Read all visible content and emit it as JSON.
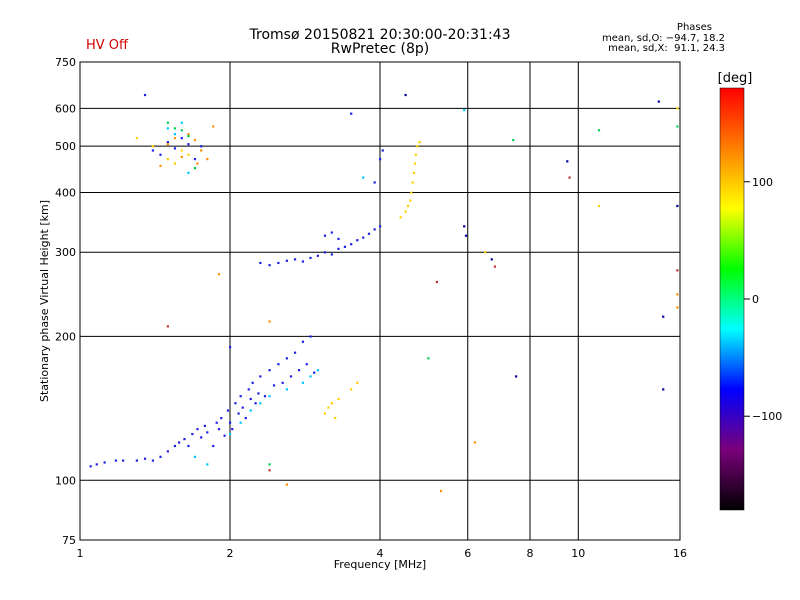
{
  "header": {
    "title": "Tromsø 20150821 20:30:00-20:31:43",
    "subtitle": "RwPretec (8p)",
    "status": "HV Off",
    "phases_title": "Phases",
    "phases_o": "mean, sd,O: −94.7, 18.2",
    "phases_x": "mean, sd,X:  91.1, 24.3"
  },
  "colorbar": {
    "unit": "[deg]",
    "ticks": [
      "100",
      "0",
      "−100"
    ],
    "tick_values": [
      100,
      0,
      -100
    ],
    "range": [
      -180,
      180
    ],
    "colors": [
      "#000000",
      "#7a007a",
      "#0000ff",
      "#00ffff",
      "#00ff00",
      "#ffff00",
      "#ff8000",
      "#ff0000"
    ]
  },
  "chart_data": {
    "type": "scatter",
    "title": "Tromsø 20150821 20:30:00-20:31:43",
    "subtitle": "RwPretec (8p)",
    "xlabel": "Frequency [MHz]",
    "ylabel": "Stationary phase Virtual Height [km]",
    "xscale": "log",
    "yscale": "log",
    "xlim": [
      1,
      16
    ],
    "ylim": [
      75,
      750
    ],
    "xticks": [
      1,
      2,
      4,
      6,
      8,
      10,
      16
    ],
    "xtick_labels": [
      "1",
      "2",
      "4",
      "6",
      "8",
      "10",
      "16"
    ],
    "yticks": [
      75,
      100,
      200,
      300,
      400,
      500,
      600,
      750
    ],
    "ytick_labels": [
      "75",
      "100",
      "200",
      "300",
      "400",
      "500",
      "600",
      "750"
    ],
    "grid": true,
    "series": [
      {
        "color": "#1f1fe6",
        "points": [
          [
            1.05,
            107
          ],
          [
            1.08,
            108
          ],
          [
            1.12,
            109
          ],
          [
            1.18,
            110
          ],
          [
            1.22,
            110
          ],
          [
            1.3,
            110
          ],
          [
            1.35,
            111
          ],
          [
            1.4,
            110
          ],
          [
            1.45,
            112
          ],
          [
            1.5,
            115
          ],
          [
            1.55,
            118
          ],
          [
            1.58,
            120
          ],
          [
            1.62,
            122
          ],
          [
            1.65,
            118
          ],
          [
            1.68,
            125
          ],
          [
            1.72,
            128
          ],
          [
            1.75,
            123
          ],
          [
            1.78,
            130
          ],
          [
            1.8,
            126
          ],
          [
            1.85,
            118
          ],
          [
            1.88,
            132
          ],
          [
            1.9,
            128
          ],
          [
            1.92,
            135
          ],
          [
            1.95,
            124
          ],
          [
            1.98,
            140
          ],
          [
            2.0,
            132
          ],
          [
            2.02,
            128
          ],
          [
            2.05,
            145
          ],
          [
            2.08,
            138
          ],
          [
            2.1,
            150
          ],
          [
            2.12,
            142
          ],
          [
            2.15,
            135
          ],
          [
            2.18,
            155
          ],
          [
            2.2,
            148
          ],
          [
            2.22,
            160
          ],
          [
            2.25,
            145
          ],
          [
            2.28,
            152
          ],
          [
            2.3,
            165
          ],
          [
            2.35,
            150
          ],
          [
            2.4,
            170
          ],
          [
            2.45,
            158
          ],
          [
            2.5,
            175
          ],
          [
            2.55,
            160
          ],
          [
            2.6,
            180
          ],
          [
            2.65,
            165
          ],
          [
            2.7,
            185
          ],
          [
            2.75,
            170
          ],
          [
            2.8,
            195
          ],
          [
            2.85,
            175
          ],
          [
            2.9,
            200
          ],
          [
            2.95,
            168
          ],
          [
            2.0,
            190
          ],
          [
            2.5,
            285
          ],
          [
            2.6,
            288
          ],
          [
            2.7,
            290
          ],
          [
            2.8,
            287
          ],
          [
            2.9,
            292
          ],
          [
            3.0,
            295
          ],
          [
            3.1,
            300
          ],
          [
            3.2,
            297
          ],
          [
            3.3,
            305
          ],
          [
            3.4,
            308
          ],
          [
            3.5,
            312
          ],
          [
            3.6,
            318
          ],
          [
            3.7,
            322
          ],
          [
            3.8,
            328
          ],
          [
            3.9,
            335
          ],
          [
            4.0,
            340
          ],
          [
            3.1,
            325
          ],
          [
            3.2,
            330
          ],
          [
            3.3,
            320
          ],
          [
            3.5,
            585
          ],
          [
            4.0,
            470
          ],
          [
            4.05,
            490
          ],
          [
            3.9,
            420
          ],
          [
            2.3,
            285
          ],
          [
            2.4,
            282
          ],
          [
            1.4,
            490
          ],
          [
            1.45,
            480
          ],
          [
            1.5,
            510
          ],
          [
            1.55,
            495
          ],
          [
            1.6,
            520
          ],
          [
            1.65,
            505
          ],
          [
            1.7,
            470
          ],
          [
            1.75,
            500
          ],
          [
            1.35,
            640
          ]
        ]
      },
      {
        "color": "#00c8ff",
        "points": [
          [
            1.7,
            112
          ],
          [
            1.8,
            108
          ],
          [
            2.0,
            125
          ],
          [
            2.1,
            132
          ],
          [
            2.2,
            140
          ],
          [
            2.3,
            145
          ],
          [
            2.4,
            150
          ],
          [
            2.6,
            155
          ],
          [
            2.8,
            160
          ],
          [
            2.9,
            165
          ],
          [
            3.0,
            170
          ],
          [
            1.5,
            545
          ],
          [
            1.55,
            530
          ],
          [
            1.6,
            560
          ],
          [
            1.65,
            440
          ],
          [
            5.9,
            595
          ],
          [
            3.7,
            430
          ]
        ]
      },
      {
        "color": "#ffd000",
        "points": [
          [
            3.1,
            138
          ],
          [
            3.15,
            142
          ],
          [
            3.2,
            145
          ],
          [
            3.25,
            135
          ],
          [
            3.3,
            148
          ],
          [
            3.5,
            155
          ],
          [
            3.6,
            160
          ],
          [
            4.4,
            355
          ],
          [
            4.5,
            365
          ],
          [
            4.55,
            375
          ],
          [
            4.6,
            385
          ],
          [
            4.62,
            400
          ],
          [
            4.65,
            420
          ],
          [
            4.68,
            440
          ],
          [
            4.7,
            460
          ],
          [
            4.72,
            480
          ],
          [
            4.75,
            500
          ],
          [
            4.8,
            510
          ],
          [
            1.5,
            470
          ],
          [
            1.55,
            460
          ],
          [
            1.6,
            490
          ],
          [
            1.65,
            480
          ],
          [
            1.7,
            450
          ],
          [
            1.4,
            500
          ],
          [
            1.3,
            520
          ],
          [
            11.0,
            375
          ],
          [
            15.8,
            600
          ],
          [
            6.5,
            300
          ]
        ]
      },
      {
        "color": "#ff9000",
        "points": [
          [
            1.45,
            455
          ],
          [
            1.5,
            505
          ],
          [
            1.55,
            520
          ],
          [
            1.6,
            475
          ],
          [
            1.65,
            530
          ],
          [
            1.7,
            515
          ],
          [
            1.72,
            460
          ],
          [
            1.75,
            490
          ],
          [
            1.8,
            470
          ],
          [
            1.85,
            550
          ],
          [
            2.4,
            215
          ],
          [
            2.6,
            98
          ],
          [
            5.3,
            95
          ],
          [
            15.8,
            230
          ],
          [
            15.8,
            245
          ],
          [
            6.2,
            120
          ],
          [
            1.9,
            270
          ]
        ]
      },
      {
        "color": "#00d050",
        "points": [
          [
            1.5,
            560
          ],
          [
            1.55,
            545
          ],
          [
            1.6,
            540
          ],
          [
            1.65,
            525
          ],
          [
            1.7,
            450
          ],
          [
            5.0,
            180
          ],
          [
            7.4,
            515
          ],
          [
            11.0,
            540
          ],
          [
            15.8,
            550
          ],
          [
            2.4,
            108
          ]
        ]
      },
      {
        "color": "#c03030",
        "points": [
          [
            1.5,
            210
          ],
          [
            2.4,
            105
          ],
          [
            5.2,
            260
          ],
          [
            9.6,
            430
          ],
          [
            6.8,
            280
          ],
          [
            15.8,
            275
          ]
        ]
      },
      {
        "color": "#0000a0",
        "points": [
          [
            4.5,
            640
          ],
          [
            5.9,
            340
          ],
          [
            5.95,
            325
          ],
          [
            6.7,
            290
          ],
          [
            7.5,
            165
          ],
          [
            9.5,
            465
          ],
          [
            14.5,
            620
          ],
          [
            14.8,
            155
          ],
          [
            15.8,
            375
          ],
          [
            14.8,
            220
          ]
        ]
      }
    ]
  }
}
